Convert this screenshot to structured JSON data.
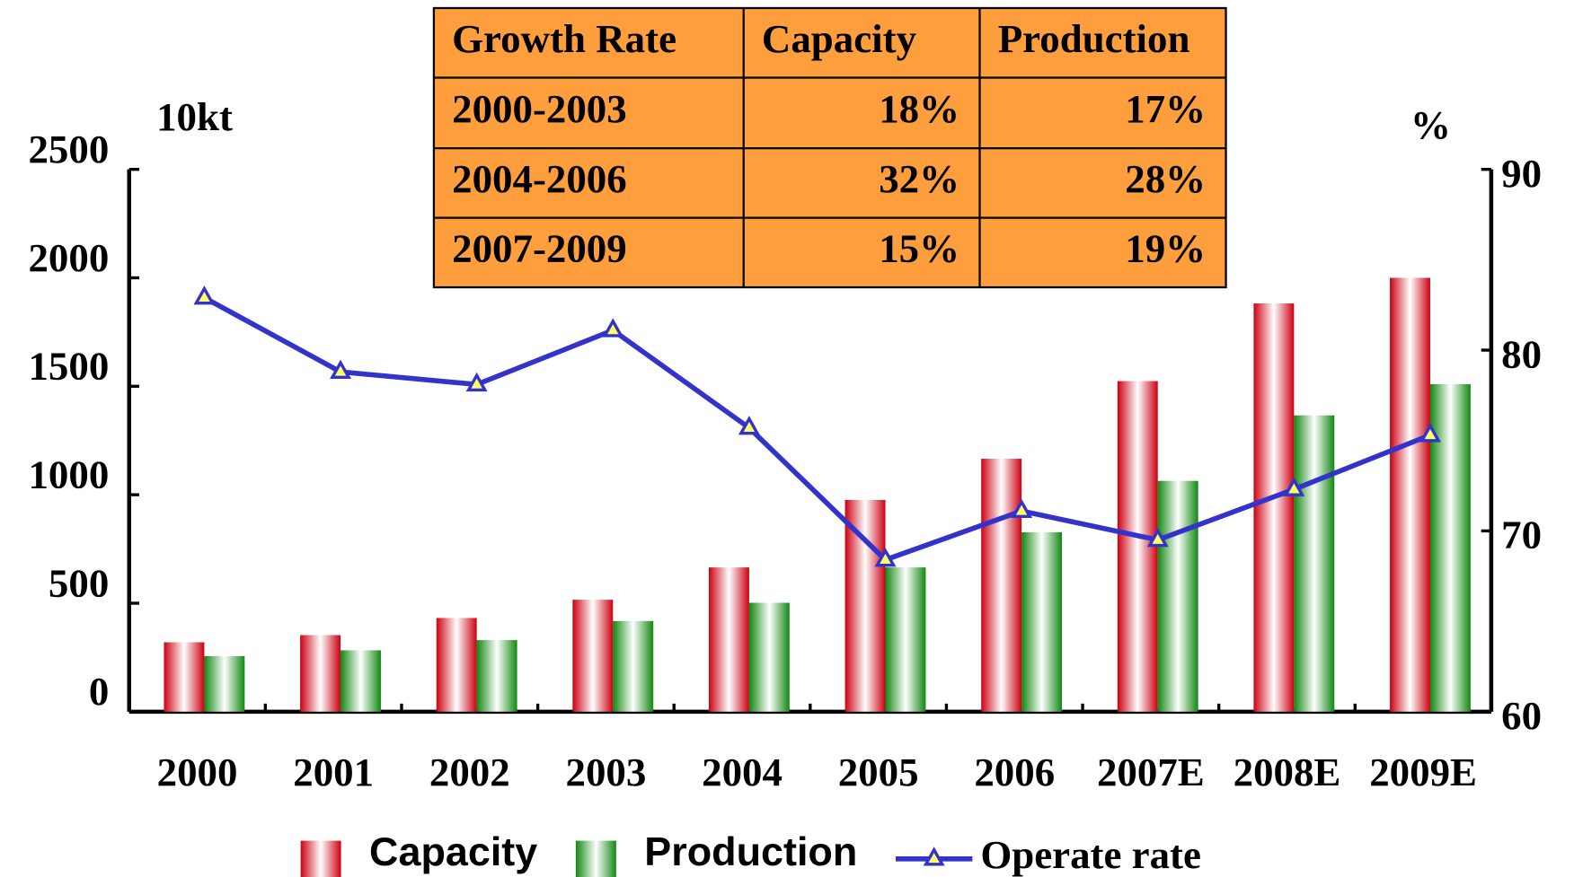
{
  "chart_data": {
    "type": "bar",
    "categories": [
      "2000",
      "2001",
      "2002",
      "2003",
      "2004",
      "2005",
      "2006",
      "2007E",
      "2008E",
      "2009E"
    ],
    "series": [
      {
        "name": "Capacity",
        "color": "#cc0011",
        "values": [
          320,
          353,
          432,
          516,
          665,
          976,
          1166,
          1524,
          1882,
          2000
        ]
      },
      {
        "name": "Production",
        "color": "#118811",
        "values": [
          256,
          283,
          330,
          418,
          502,
          665,
          827,
          1064,
          1366,
          1510
        ]
      },
      {
        "name": "Operate rate",
        "type": "line",
        "axis": "y2",
        "color": "#3333cc",
        "values": [
          82.9,
          78.8,
          78.1,
          81.1,
          75.7,
          68.4,
          71.1,
          69.5,
          72.3,
          75.3
        ]
      }
    ],
    "ylabel": "10kt",
    "y2label": "%",
    "ylim": [
      0,
      2500
    ],
    "yticks": [
      0,
      500,
      1000,
      1500,
      2000,
      2500
    ],
    "y2lim": [
      60,
      90
    ],
    "y2ticks": [
      60,
      70,
      80,
      90
    ],
    "legend": "bottom"
  },
  "table": {
    "headers": [
      "Growth Rate",
      "Capacity",
      "Production"
    ],
    "rows": [
      [
        "2000-2003",
        "18%",
        "17%"
      ],
      [
        "2004-2006",
        "32%",
        "28%"
      ],
      [
        "2007-2009",
        "15%",
        "19%"
      ]
    ],
    "color": "#ff9e3d"
  }
}
